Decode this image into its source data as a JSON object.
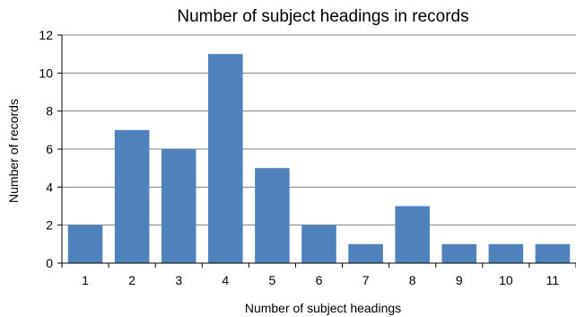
{
  "chart_data": {
    "type": "bar",
    "title": "Number of subject headings in records",
    "xlabel": "Number of subject headings",
    "ylabel": "Number of records",
    "categories": [
      "1",
      "2",
      "3",
      "4",
      "5",
      "6",
      "7",
      "8",
      "9",
      "10",
      "11"
    ],
    "values": [
      2,
      7,
      6,
      11,
      5,
      2,
      1,
      3,
      1,
      1,
      1
    ],
    "ylim": [
      0,
      12
    ],
    "yticks": [
      "0",
      "2",
      "4",
      "6",
      "8",
      "10",
      "12"
    ],
    "grid": "horizontal",
    "legend": "none",
    "colors": {
      "bar": "#4f81bd",
      "grid": "#808080",
      "axis": "#000000",
      "text": "#000000"
    }
  }
}
